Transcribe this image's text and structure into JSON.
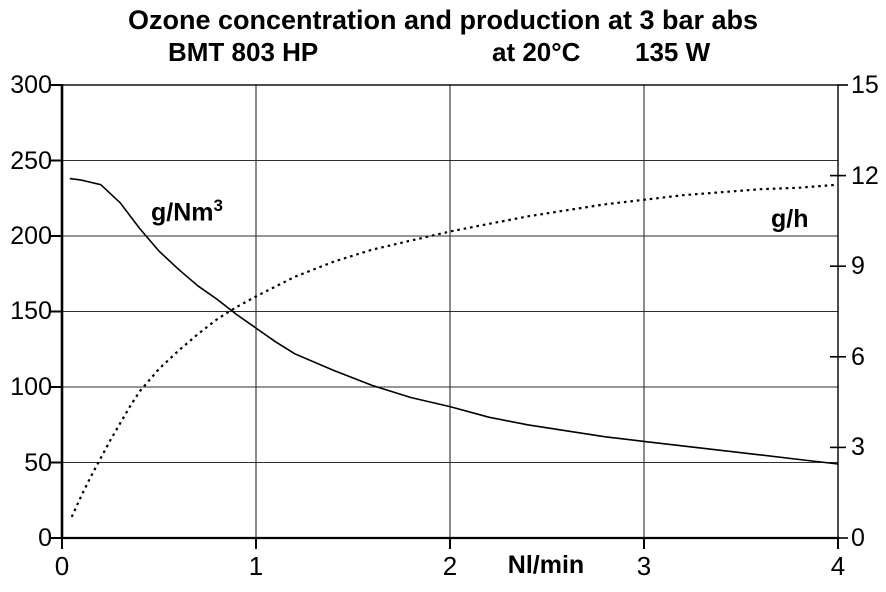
{
  "header": {
    "title": "Ozone concentration and production at 3 bar abs",
    "model": "BMT 803 HP",
    "temperature": "at 20°C",
    "power": "135 W"
  },
  "chart_data": {
    "type": "line",
    "title": "Ozone concentration and production at 3 bar abs",
    "subtitle": "BMT 803 HP  at 20°C  135 W",
    "xlabel": "Nl/min",
    "xlim": [
      0,
      4
    ],
    "x_ticks": [
      0,
      1,
      2,
      3,
      4
    ],
    "grid": true,
    "legend_position": "in-plot-text-labels",
    "left_axis": {
      "label": "g/Nm3",
      "label_base": "g/Nm",
      "label_sup": "3",
      "lim": [
        0,
        300
      ],
      "ticks": [
        0,
        50,
        100,
        150,
        200,
        250,
        300
      ]
    },
    "right_axis": {
      "label": "g/h",
      "lim": [
        0,
        15
      ],
      "ticks": [
        0,
        3,
        6,
        9,
        12,
        15
      ]
    },
    "series": [
      {
        "name": "Ozone concentration",
        "unit": "g/Nm3",
        "axis": "left",
        "style": "solid",
        "points": [
          [
            0.04,
            238
          ],
          [
            0.1,
            237
          ],
          [
            0.2,
            234
          ],
          [
            0.3,
            222
          ],
          [
            0.4,
            205
          ],
          [
            0.5,
            190
          ],
          [
            0.6,
            178
          ],
          [
            0.7,
            167
          ],
          [
            0.8,
            158
          ],
          [
            0.9,
            148
          ],
          [
            1.0,
            139
          ],
          [
            1.1,
            130
          ],
          [
            1.2,
            122
          ],
          [
            1.4,
            111
          ],
          [
            1.6,
            101
          ],
          [
            1.8,
            93
          ],
          [
            2.0,
            87
          ],
          [
            2.2,
            80
          ],
          [
            2.4,
            75
          ],
          [
            2.6,
            71
          ],
          [
            2.8,
            67
          ],
          [
            3.0,
            64
          ],
          [
            3.2,
            61
          ],
          [
            3.4,
            58
          ],
          [
            3.6,
            55
          ],
          [
            3.8,
            52
          ],
          [
            4.0,
            49
          ]
        ]
      },
      {
        "name": "Ozone production",
        "unit": "g/h",
        "axis": "right",
        "style": "dotted",
        "points": [
          [
            0.05,
            0.7
          ],
          [
            0.1,
            1.4
          ],
          [
            0.15,
            2.05
          ],
          [
            0.2,
            2.65
          ],
          [
            0.25,
            3.25
          ],
          [
            0.3,
            3.8
          ],
          [
            0.35,
            4.35
          ],
          [
            0.4,
            4.85
          ],
          [
            0.5,
            5.6
          ],
          [
            0.6,
            6.2
          ],
          [
            0.7,
            6.75
          ],
          [
            0.8,
            7.25
          ],
          [
            0.9,
            7.65
          ],
          [
            1.0,
            8.0
          ],
          [
            1.2,
            8.65
          ],
          [
            1.4,
            9.15
          ],
          [
            1.6,
            9.55
          ],
          [
            1.8,
            9.85
          ],
          [
            2.0,
            10.15
          ],
          [
            2.2,
            10.4
          ],
          [
            2.4,
            10.65
          ],
          [
            2.6,
            10.85
          ],
          [
            2.8,
            11.05
          ],
          [
            3.0,
            11.2
          ],
          [
            3.2,
            11.35
          ],
          [
            3.4,
            11.45
          ],
          [
            3.6,
            11.55
          ],
          [
            3.8,
            11.6
          ],
          [
            4.0,
            11.7
          ]
        ]
      }
    ],
    "colors": {
      "line": "#000000",
      "grid": "#2e2e2e",
      "background": "#ffffff"
    }
  }
}
